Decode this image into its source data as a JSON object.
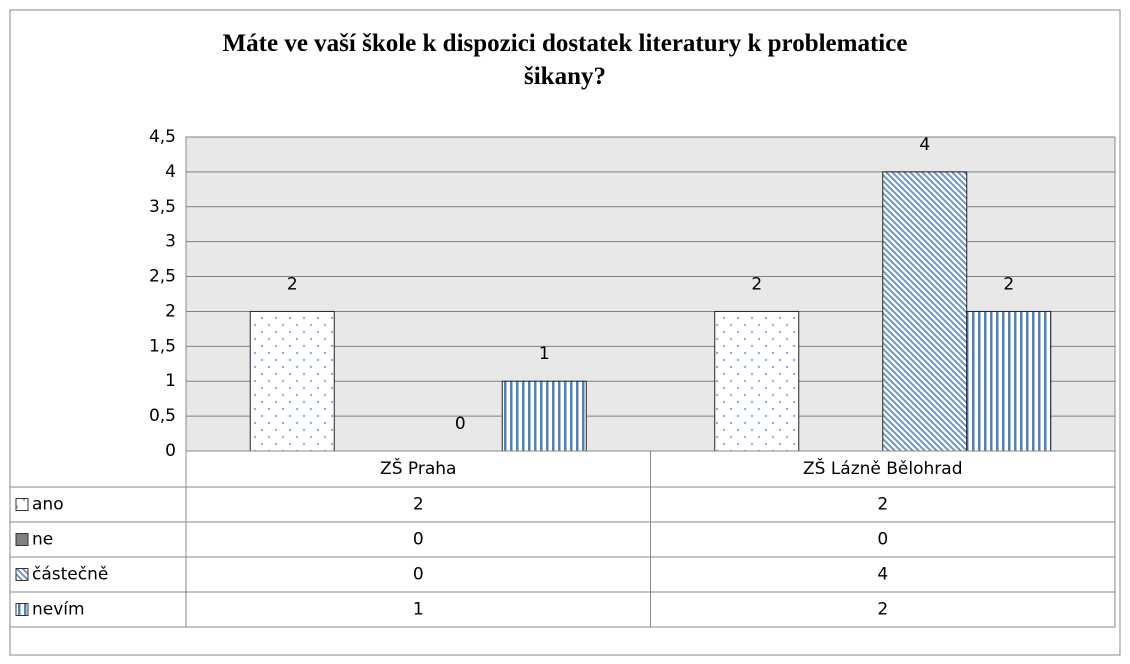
{
  "chart_data": {
    "type": "bar",
    "title": "Máte ve vaší škole k dispozici dostatek literatury k problematice šikany?",
    "categories": [
      "ZŠ Praha",
      "ZŠ Lázně Bělohrad"
    ],
    "series": [
      {
        "name": "ano",
        "color": "#4f81bd",
        "pattern": "dots",
        "data_labels": true,
        "values": [
          2,
          2
        ]
      },
      {
        "name": "ne",
        "color": "#808080",
        "pattern": "solid",
        "data_labels": false,
        "values": [
          0,
          0
        ]
      },
      {
        "name": "částečně",
        "color": "#4f81bd",
        "pattern": "diagonal",
        "data_labels": true,
        "values": [
          0,
          4
        ]
      },
      {
        "name": "nevím",
        "color": "#4f81bd",
        "pattern": "vertical",
        "data_labels": true,
        "values": [
          1,
          2
        ]
      }
    ],
    "ylim": [
      0,
      4.5
    ],
    "yticks": [
      0,
      {
        "value": 0.5,
        "label": "0,5"
      },
      1,
      {
        "value": 1.5,
        "label": "1,5"
      },
      2,
      {
        "value": 2.5,
        "label": "2,5"
      },
      3,
      {
        "value": 3.5,
        "label": "3,5"
      },
      4,
      {
        "value": 4.5,
        "label": "4,5"
      }
    ],
    "grid": true,
    "data_table": true
  }
}
